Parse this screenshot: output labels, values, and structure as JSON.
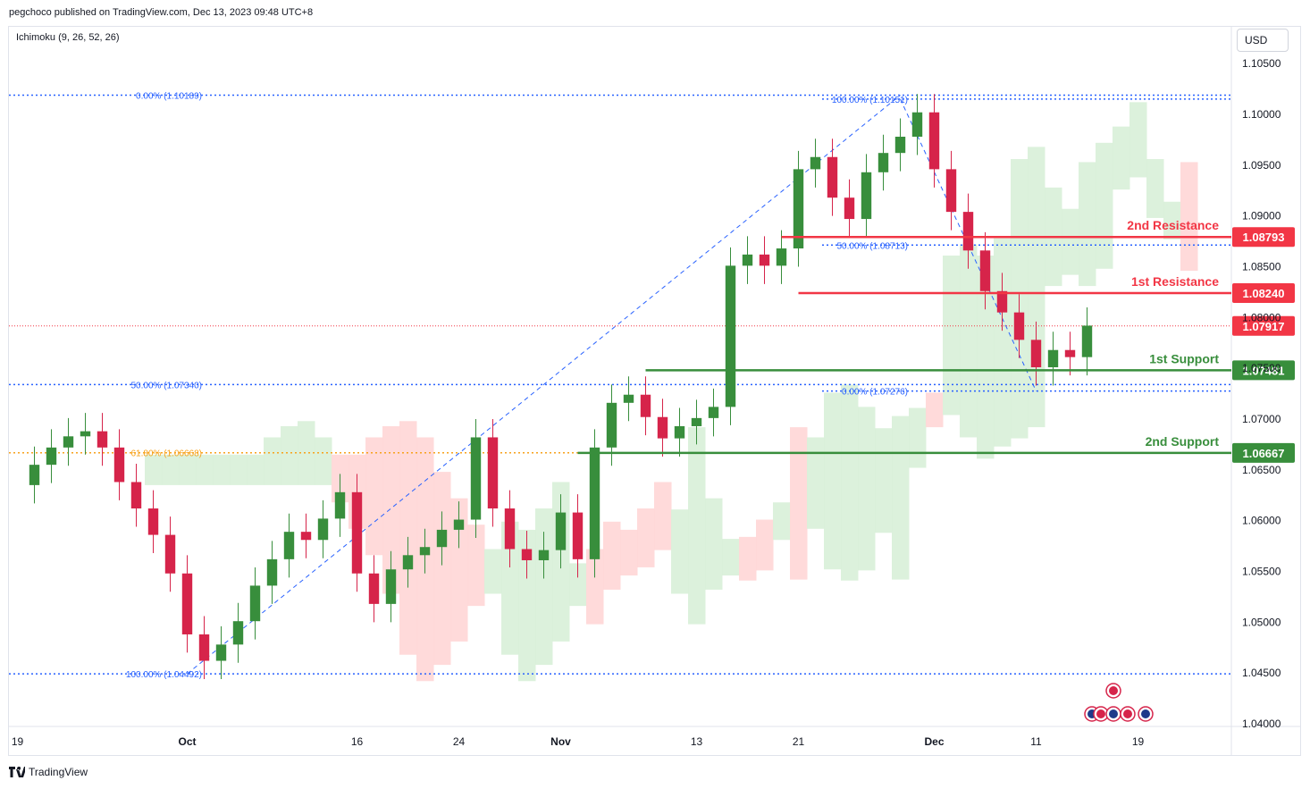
{
  "header": {
    "publisher": "pegchoco published on TradingView.com, Dec 13, 2023 09:48 UTC+8"
  },
  "indicator": {
    "label": "Ichimoku (9, 26, 52, 26)"
  },
  "currency": {
    "label": "USD"
  },
  "footer": {
    "brand": "TradingView"
  },
  "colors": {
    "resistance": "#f23645",
    "support": "#388e3c",
    "fib": "#2962ff",
    "fib_golden": "#f7a21b",
    "candle_up": "#388e3c",
    "candle_down": "#d6244a",
    "cloud_bear": "#ffd6d6",
    "cloud_bull": "#d8f0d8"
  },
  "chart_data": {
    "type": "candlestick",
    "symbol_currency": "USD",
    "y_axis": {
      "ylim": [
        1.04,
        1.106
      ],
      "ticks": [
        "1.10500",
        "1.10000",
        "1.09500",
        "1.09000",
        "1.08500",
        "1.08000",
        "1.07500",
        "1.07000",
        "1.06500",
        "1.06000",
        "1.05500",
        "1.05000",
        "1.04500",
        "1.04000"
      ]
    },
    "x_axis": {
      "ticks": [
        {
          "label": "19",
          "index": 0
        },
        {
          "label": "Oct",
          "index": 10,
          "bold": true
        },
        {
          "label": "16",
          "index": 20
        },
        {
          "label": "24",
          "index": 26
        },
        {
          "label": "Nov",
          "index": 32,
          "bold": true
        },
        {
          "label": "13",
          "index": 40
        },
        {
          "label": "21",
          "index": 46
        },
        {
          "label": "Dec",
          "index": 54,
          "bold": true
        },
        {
          "label": "11",
          "index": 60
        },
        {
          "label": "19",
          "index": 66
        }
      ],
      "total_slots": 72
    },
    "horizontal_levels": [
      {
        "name": "2nd Resistance",
        "value": 1.08793,
        "label": "1.08793",
        "kind": "resistance",
        "start_index": 45
      },
      {
        "name": "1st Resistance",
        "value": 1.0824,
        "label": "1.08240",
        "kind": "resistance",
        "start_index": 46
      },
      {
        "name": "1st Support",
        "value": 1.07481,
        "label": "1.07481",
        "kind": "support",
        "start_index": 37
      },
      {
        "name": "2nd Support",
        "value": 1.06667,
        "label": "1.06667",
        "kind": "support",
        "start_index": 33
      }
    ],
    "current_price": {
      "value": 1.07917,
      "label": "1.07917"
    },
    "fib_labels": [
      {
        "text": "0.00% (1.10189)",
        "value": 1.10189,
        "side": "left",
        "color": "fib"
      },
      {
        "text": "50.00% (1.07340)",
        "value": 1.0734,
        "side": "left",
        "color": "fib"
      },
      {
        "text": "61.80% (1.06668)",
        "value": 1.06668,
        "side": "left",
        "color": "fib_golden"
      },
      {
        "text": "100.00% (1.04492)",
        "value": 1.04492,
        "side": "left",
        "color": "fib"
      },
      {
        "text": "100.00% (1.10151)",
        "value": 1.10151,
        "side": "right",
        "color": "fib"
      },
      {
        "text": "50.00% (1.08713)",
        "value": 1.08713,
        "side": "right",
        "color": "fib"
      },
      {
        "text": "0.00% (1.07276)",
        "value": 1.07276,
        "side": "right",
        "color": "fib"
      }
    ],
    "closes": [
      1.0655,
      1.0672,
      1.0683,
      1.0688,
      1.0672,
      1.0638,
      1.0612,
      1.0586,
      1.0548,
      1.0488,
      1.0462,
      1.0478,
      1.0501,
      1.0536,
      1.0562,
      1.0589,
      1.0581,
      1.0602,
      1.0628,
      1.0548,
      1.0518,
      1.0552,
      1.0566,
      1.0574,
      1.0591,
      1.0601,
      1.0682,
      1.0612,
      1.0572,
      1.0561,
      1.0571,
      1.0608,
      1.0562,
      1.0672,
      1.0716,
      1.0724,
      1.0702,
      1.0681,
      1.0693,
      1.0701,
      1.0712,
      1.0851,
      1.0862,
      1.0851,
      1.0868,
      1.0946,
      1.0958,
      1.0918,
      1.0897,
      1.0943,
      1.0962,
      1.0978,
      1.1002,
      1.0946,
      1.0904,
      1.0866,
      1.0826,
      1.0805,
      1.0778,
      1.0751,
      1.0768,
      1.0761,
      1.0792
    ],
    "ichimoku_note": "Ichimoku cloud with red (bearish) and green (bullish) spans"
  }
}
